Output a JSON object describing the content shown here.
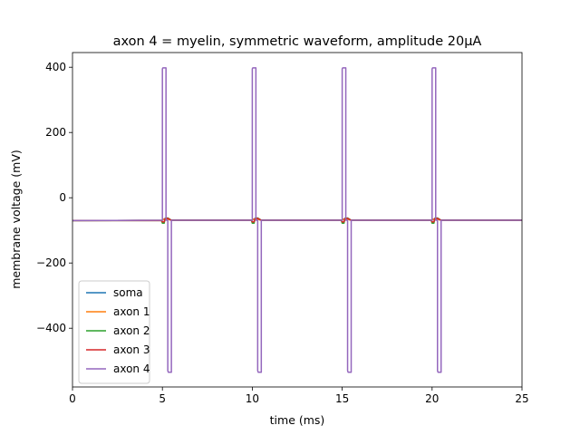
{
  "chart_data": {
    "type": "line",
    "title": "axon 4 = myelin, symmetric waveform, amplitude 20µA",
    "xlabel": "time (ms)",
    "ylabel": "membrane voltage (mV)",
    "xlim": [
      0,
      25
    ],
    "ylim": [
      -580,
      445
    ],
    "x_ticks": [
      0,
      5,
      10,
      15,
      20,
      25
    ],
    "x_tick_labels": [
      "0",
      "5",
      "10",
      "15",
      "20",
      "25"
    ],
    "y_ticks": [
      400,
      200,
      0,
      -200,
      -400
    ],
    "y_tick_labels": [
      "400",
      "200",
      "0",
      "−200",
      "−400"
    ],
    "grid": false,
    "legend_position": "lower-left",
    "series": [
      {
        "name": "soma",
        "color": "#1f77b4",
        "x": [
          0,
          5,
          5.05,
          5.2,
          5.5,
          10,
          10.05,
          10.2,
          10.5,
          15,
          15.05,
          15.2,
          15.5,
          20,
          20.05,
          20.2,
          20.5,
          25
        ],
        "y": [
          -70,
          -69,
          -66,
          -64,
          -69,
          -69,
          -66,
          -64,
          -69,
          -69,
          -66,
          -64,
          -69,
          -69,
          -66,
          -64,
          -69,
          -69
        ]
      },
      {
        "name": "axon 1",
        "color": "#ff7f0e",
        "x": [
          0,
          5,
          5.05,
          5.2,
          5.5,
          10,
          10.05,
          10.2,
          10.5,
          15,
          15.05,
          15.2,
          15.5,
          20,
          20.05,
          20.2,
          20.5,
          25
        ],
        "y": [
          -70,
          -69,
          -66,
          -64,
          -69,
          -69,
          -66,
          -64,
          -69,
          -69,
          -66,
          -64,
          -69,
          -69,
          -66,
          -64,
          -69,
          -69
        ]
      },
      {
        "name": "axon 2",
        "color": "#2ca02c",
        "x": [
          0,
          4.95,
          5.0,
          5.1,
          5.15,
          5.3,
          5.5,
          9.95,
          10.0,
          10.1,
          10.15,
          10.3,
          10.5,
          14.95,
          15.0,
          15.1,
          15.15,
          15.3,
          15.5,
          19.95,
          20.0,
          20.1,
          20.15,
          20.3,
          20.5,
          25
        ],
        "y": [
          -70,
          -70,
          -78,
          -78,
          -63,
          -62,
          -69,
          -69,
          -78,
          -78,
          -63,
          -62,
          -69,
          -69,
          -78,
          -78,
          -63,
          -62,
          -69,
          -69,
          -78,
          -78,
          -63,
          -62,
          -69,
          -69
        ]
      },
      {
        "name": "axon 3",
        "color": "#d62728",
        "x": [
          0,
          4.95,
          5.0,
          5.1,
          5.15,
          5.3,
          5.5,
          9.95,
          10.0,
          10.1,
          10.15,
          10.3,
          10.5,
          14.95,
          15.0,
          15.1,
          15.15,
          15.3,
          15.5,
          19.95,
          20.0,
          20.1,
          20.15,
          20.3,
          20.5,
          25
        ],
        "y": [
          -70,
          -70,
          -74,
          -74,
          -64,
          -63,
          -69,
          -69,
          -74,
          -74,
          -64,
          -63,
          -69,
          -69,
          -74,
          -74,
          -64,
          -63,
          -69,
          -69,
          -74,
          -74,
          -64,
          -63,
          -69,
          -69
        ]
      },
      {
        "name": "axon 4",
        "color": "#9467bd",
        "x": [
          0,
          5.0,
          5.0,
          5.03,
          5.2,
          5.2,
          5.3,
          5.3,
          5.33,
          5.5,
          5.5,
          10.0,
          10.0,
          10.03,
          10.2,
          10.2,
          10.3,
          10.3,
          10.33,
          10.5,
          10.5,
          15.0,
          15.0,
          15.03,
          15.2,
          15.2,
          15.3,
          15.3,
          15.33,
          15.5,
          15.5,
          20.0,
          20.0,
          20.03,
          20.2,
          20.2,
          20.3,
          20.3,
          20.33,
          20.5,
          20.5,
          25
        ],
        "y": [
          -70,
          -69,
          395,
          398,
          398,
          -69,
          -69,
          -530,
          -535,
          -535,
          -69,
          -69,
          395,
          398,
          398,
          -69,
          -69,
          -530,
          -535,
          -535,
          -69,
          -69,
          395,
          398,
          398,
          -69,
          -69,
          -530,
          -535,
          -535,
          -69,
          -69,
          395,
          398,
          398,
          -69,
          -69,
          -530,
          -535,
          -535,
          -69,
          -69
        ]
      }
    ]
  }
}
